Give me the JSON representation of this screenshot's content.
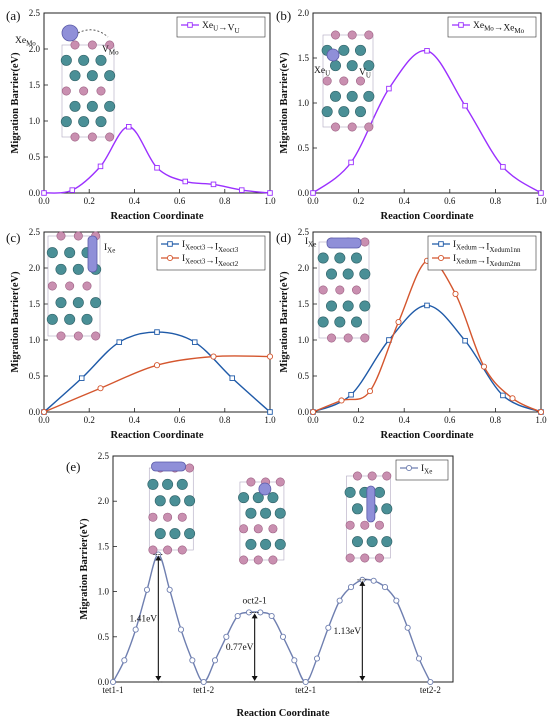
{
  "figure": {
    "panels": [
      "(a)",
      "(b)",
      "(c)",
      "(d)",
      "(e)"
    ]
  },
  "chart_data": [
    {
      "panel": "(a)",
      "type": "line",
      "xlabel": "Reaction Coordinate",
      "ylabel": "Migration Barrier(eV)",
      "xlim": [
        0.0,
        1.0
      ],
      "ylim": [
        0.0,
        2.5
      ],
      "xticks": [
        "0.0",
        "0.2",
        "0.4",
        "0.6",
        "0.8",
        "1.0"
      ],
      "yticks": [
        "0.0",
        "0.5",
        "1.0",
        "1.5",
        "2.0",
        "2.5"
      ],
      "legend_position": "top-right",
      "inset_labels": [
        "Xe",
        "Mo",
        "V",
        "Mo"
      ],
      "series": [
        {
          "name": "Xe_U→V_U",
          "color": "#9b30ff",
          "marker": "square",
          "x": [
            0.0,
            0.125,
            0.25,
            0.375,
            0.5,
            0.625,
            0.75,
            0.875,
            1.0
          ],
          "y": [
            0.0,
            0.04,
            0.37,
            0.92,
            0.35,
            0.16,
            0.12,
            0.04,
            0.0
          ]
        }
      ]
    },
    {
      "panel": "(b)",
      "type": "line",
      "xlabel": "Reaction Coordinate",
      "ylabel": "Migration Barrier(eV)",
      "xlim": [
        0.0,
        1.0
      ],
      "ylim": [
        0.0,
        2.0
      ],
      "xticks": [
        "0.0",
        "0.2",
        "0.4",
        "0.6",
        "0.8",
        "1.0"
      ],
      "yticks": [
        "0.0",
        "0.5",
        "1.0",
        "1.5",
        "2.0"
      ],
      "legend_position": "top-right",
      "inset_labels": [
        "Xe",
        "U",
        "V",
        "U"
      ],
      "series": [
        {
          "name": "Xe_Mo→Xe_Mo",
          "color": "#9b30ff",
          "marker": "square",
          "x": [
            0.0,
            0.167,
            0.333,
            0.5,
            0.667,
            0.833,
            1.0
          ],
          "y": [
            0.0,
            0.34,
            1.16,
            1.58,
            0.97,
            0.29,
            0.0
          ]
        }
      ]
    },
    {
      "panel": "(c)",
      "type": "line",
      "xlabel": "Reaction Coordinate",
      "ylabel": "Migration Barrier(eV)",
      "xlim": [
        0.0,
        1.0
      ],
      "ylim": [
        0.0,
        2.5
      ],
      "xticks": [
        "0.0",
        "0.2",
        "0.4",
        "0.6",
        "0.8",
        "1.0"
      ],
      "yticks": [
        "0.0",
        "0.5",
        "1.0",
        "1.5",
        "2.0",
        "2.5"
      ],
      "legend_position": "top-right",
      "inset_labels": [
        "I",
        "Xe"
      ],
      "series": [
        {
          "name": "I_Xeoct3_1→I_Xeoct3_2",
          "color": "#1f5aa8",
          "marker": "square",
          "x": [
            0.0,
            0.167,
            0.333,
            0.5,
            0.667,
            0.833,
            1.0
          ],
          "y": [
            0.0,
            0.47,
            0.97,
            1.11,
            0.97,
            0.47,
            0.0
          ]
        },
        {
          "name": "I_Xeoct3_1→I_Xeoct2_1",
          "color": "#d4562e",
          "marker": "circle",
          "x": [
            0.0,
            0.25,
            0.5,
            0.75,
            1.0
          ],
          "y": [
            0.0,
            0.33,
            0.65,
            0.77,
            0.77
          ]
        }
      ]
    },
    {
      "panel": "(d)",
      "type": "line",
      "xlabel": "Reaction Coordinate",
      "ylabel": "Migration Barrier(eV)",
      "xlim": [
        0.0,
        1.0
      ],
      "ylim": [
        0.0,
        2.5
      ],
      "xticks": [
        "0.0",
        "0.2",
        "0.4",
        "0.6",
        "0.8",
        "1.0"
      ],
      "yticks": [
        "0.0",
        "0.5",
        "1.0",
        "1.5",
        "2.0",
        "2.5"
      ],
      "legend_position": "top-right",
      "inset_labels": [
        "I",
        "Xe"
      ],
      "series": [
        {
          "name": "I_Xedum→I_Xedum1nn",
          "color": "#1f5aa8",
          "marker": "square",
          "x": [
            0.0,
            0.167,
            0.333,
            0.5,
            0.667,
            0.833,
            1.0
          ],
          "y": [
            0.0,
            0.24,
            1.0,
            1.48,
            0.99,
            0.23,
            0.0
          ]
        },
        {
          "name": "I_Xedum→I_Xedum2nn",
          "color": "#d4562e",
          "marker": "circle",
          "x": [
            0.0,
            0.125,
            0.25,
            0.375,
            0.5,
            0.625,
            0.75,
            0.875,
            1.0
          ],
          "y": [
            0.0,
            0.16,
            0.29,
            1.25,
            2.1,
            1.64,
            0.63,
            0.19,
            0.0
          ]
        }
      ]
    },
    {
      "panel": "(e)",
      "type": "line",
      "xlabel": "Reaction Coordinate",
      "ylabel": "Migration Barrier(eV)",
      "ylim": [
        0.0,
        2.5
      ],
      "yticks": [
        "0.0",
        "0.5",
        "1.0",
        "1.5",
        "2.0",
        "2.5"
      ],
      "categories": [
        "tet1-1",
        "tet1-2",
        "tet2-1",
        "tet2-2"
      ],
      "legend_position": "top-right",
      "annotations": [
        "oct2-1",
        "1.41eV",
        "0.77eV",
        "1.13eV"
      ],
      "series": [
        {
          "name": "I_Xe",
          "color": "#6f7fb0",
          "marker": "circle",
          "x": [
            0,
            1,
            2,
            3,
            4,
            5,
            6,
            7,
            8,
            9,
            10,
            11,
            12,
            13,
            14,
            15,
            16,
            17,
            18,
            19,
            20,
            21,
            22,
            23,
            24,
            25,
            26,
            27,
            28,
            29,
            30
          ],
          "y": [
            0.0,
            0.24,
            0.58,
            1.02,
            1.41,
            1.02,
            0.58,
            0.24,
            0.0,
            0.24,
            0.5,
            0.73,
            0.77,
            0.77,
            0.73,
            0.5,
            0.24,
            0.0,
            0.26,
            0.6,
            0.9,
            1.05,
            1.13,
            1.12,
            1.05,
            0.9,
            0.6,
            0.26,
            0.0,
            null,
            null
          ]
        }
      ]
    }
  ]
}
